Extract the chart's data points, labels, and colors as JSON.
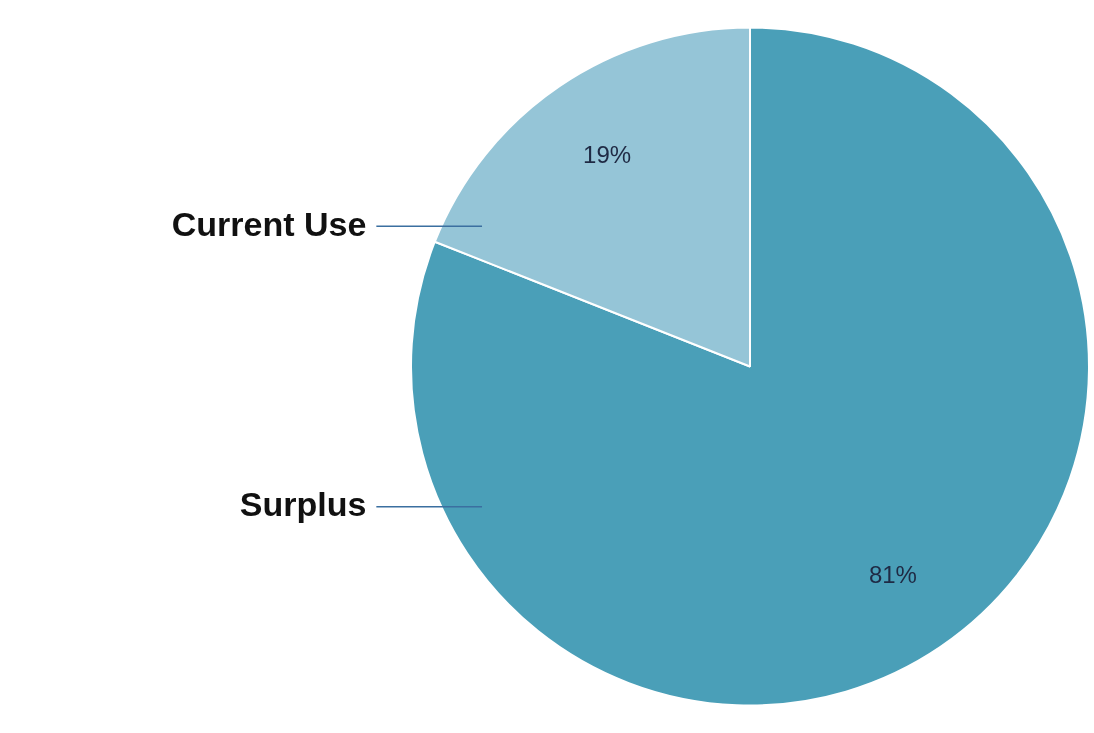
{
  "chart_data": {
    "type": "pie",
    "categories": [
      "Surplus",
      "Current Use"
    ],
    "values": [
      81,
      19
    ],
    "colors": [
      "#4a9fb8",
      "#95c5d7"
    ],
    "value_labels": [
      "81%",
      "19%"
    ],
    "legend": false
  }
}
